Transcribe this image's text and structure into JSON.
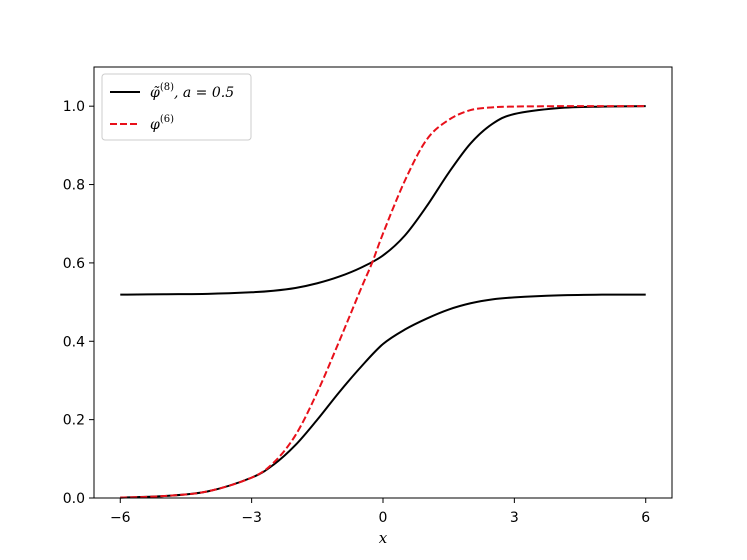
{
  "chart_data": {
    "type": "line",
    "xlabel": "x",
    "ylabel": "",
    "title": "",
    "xlim": [
      -6.6,
      6.6
    ],
    "ylim": [
      0,
      1.1
    ],
    "xticks": [
      -6,
      -3,
      0,
      3,
      6
    ],
    "xtick_labels": [
      "−6",
      "−3",
      "0",
      "3",
      "6"
    ],
    "yticks": [
      0.0,
      0.2,
      0.4,
      0.6,
      0.8,
      1.0
    ],
    "ytick_labels": [
      "0.0",
      "0.2",
      "0.4",
      "0.6",
      "0.8",
      "1.0"
    ],
    "grid": false,
    "legend_position": "upper-left",
    "series": [
      {
        "name": "φ̃(8), a = 0.5",
        "color": "#000000",
        "style": "solid",
        "branches": [
          {
            "x": [
              -6,
              -5,
              -4,
              -3,
              -2.5,
              -2,
              -1.5,
              -1,
              -0.5,
              0,
              0.5,
              1,
              1.5,
              2,
              2.5,
              3,
              4,
              5,
              6
            ],
            "y": [
              0.519,
              0.52,
              0.521,
              0.525,
              0.529,
              0.536,
              0.548,
              0.565,
              0.588,
              0.619,
              0.67,
              0.745,
              0.83,
              0.905,
              0.955,
              0.98,
              0.995,
              0.999,
              1.0
            ]
          },
          {
            "x": [
              -6,
              -5,
              -4,
              -3,
              -2.5,
              -2,
              -1.5,
              -1,
              -0.5,
              0,
              0.5,
              1,
              1.5,
              2,
              2.5,
              3,
              4,
              5,
              6
            ],
            "y": [
              0.001,
              0.005,
              0.017,
              0.052,
              0.085,
              0.135,
              0.2,
              0.27,
              0.335,
              0.393,
              0.43,
              0.458,
              0.481,
              0.497,
              0.507,
              0.512,
              0.517,
              0.519,
              0.519
            ]
          }
        ]
      },
      {
        "name": "φ(6)",
        "color": "#e8101a",
        "style": "dashed",
        "branches": [
          {
            "x": [
              -6,
              -5,
              -4,
              -3,
              -2.5,
              -2,
              -1.5,
              -1,
              -0.5,
              -0.25,
              0,
              0.5,
              1,
              1.5,
              2,
              2.5,
              3,
              4,
              5,
              6
            ],
            "y": [
              0.001,
              0.005,
              0.017,
              0.052,
              0.09,
              0.16,
              0.27,
              0.4,
              0.535,
              0.6,
              0.675,
              0.81,
              0.915,
              0.965,
              0.99,
              0.997,
              0.999,
              1.0,
              1.0,
              1.0
            ]
          }
        ]
      }
    ],
    "legend": [
      {
        "symbol": "φ̃",
        "sup": "(8)",
        "rest": ", a = 0.5"
      },
      {
        "symbol": "φ",
        "sup": "(6)",
        "rest": ""
      }
    ]
  }
}
